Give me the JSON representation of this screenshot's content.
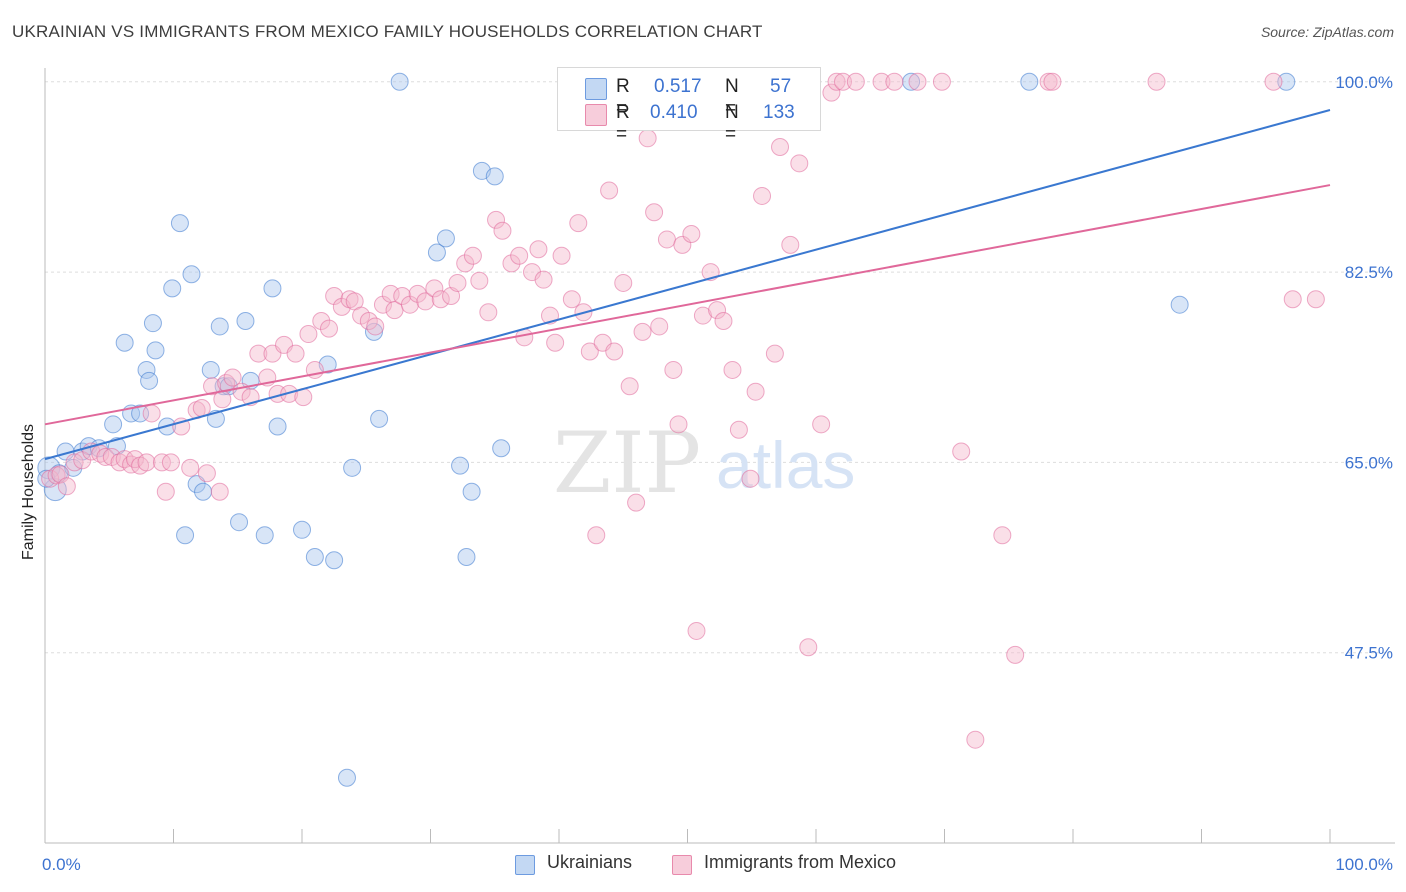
{
  "title": "UKRAINIAN VS IMMIGRANTS FROM MEXICO FAMILY HOUSEHOLDS CORRELATION CHART",
  "source": "Source: ZipAtlas.com",
  "watermark": {
    "zip": "ZIP",
    "atlas": "atlas"
  },
  "legend": {
    "r_label": "R =",
    "n_label": "N =",
    "rows": [
      {
        "r": "0.517",
        "n": "57"
      },
      {
        "r": "0.410",
        "n": "133"
      }
    ]
  },
  "colors": {
    "blue": "#3a78d0",
    "blue_fill": "#a8c6ee",
    "pink": "#e0689a",
    "pink_fill": "#f4b8cc",
    "axis_text": "#3d73d0",
    "grid": "#dddddd"
  },
  "chart_data": {
    "type": "scatter",
    "xlabel": "",
    "ylabel": "Family Households",
    "xlim": [
      0,
      100
    ],
    "ylim": [
      30,
      102
    ],
    "x_tick_labels": [
      "0.0%",
      "100.0%"
    ],
    "y_ticks": [
      47.5,
      65.0,
      82.5,
      100.0
    ],
    "y_tick_labels": [
      "47.5%",
      "65.0%",
      "82.5%",
      "100.0%"
    ],
    "series": [
      {
        "name": "Ukrainians",
        "color": "#3a78d0",
        "fill": "#a8c6ee",
        "r": 0.517,
        "n": 57,
        "trend": {
          "x0": 0,
          "y0": 65.3,
          "x1": 100,
          "y1": 97.4
        },
        "points": [
          [
            0.3,
            64.5
          ],
          [
            0.8,
            62.5
          ],
          [
            1.1,
            64.0
          ],
          [
            1.6,
            66.0
          ],
          [
            2.2,
            64.5
          ],
          [
            2.9,
            66.0
          ],
          [
            3.4,
            66.5
          ],
          [
            4.2,
            66.3
          ],
          [
            5.3,
            68.5
          ],
          [
            5.6,
            66.5
          ],
          [
            6.2,
            76.0
          ],
          [
            6.7,
            69.5
          ],
          [
            7.4,
            69.5
          ],
          [
            7.9,
            73.5
          ],
          [
            8.1,
            72.5
          ],
          [
            8.4,
            77.8
          ],
          [
            8.6,
            75.3
          ],
          [
            9.5,
            68.3
          ],
          [
            9.9,
            81.0
          ],
          [
            10.5,
            87.0
          ],
          [
            10.9,
            58.3
          ],
          [
            11.4,
            82.3
          ],
          [
            11.8,
            63.0
          ],
          [
            12.3,
            62.3
          ],
          [
            12.9,
            73.5
          ],
          [
            13.3,
            69.0
          ],
          [
            13.6,
            77.5
          ],
          [
            13.9,
            72.0
          ],
          [
            14.3,
            72.0
          ],
          [
            15.1,
            59.5
          ],
          [
            15.6,
            78.0
          ],
          [
            16.0,
            72.5
          ],
          [
            17.1,
            58.3
          ],
          [
            17.7,
            81.0
          ],
          [
            18.1,
            68.3
          ],
          [
            20.0,
            58.8
          ],
          [
            21.0,
            56.3
          ],
          [
            22.0,
            74.0
          ],
          [
            22.5,
            56.0
          ],
          [
            23.5,
            36.0
          ],
          [
            23.9,
            64.5
          ],
          [
            25.6,
            77.0
          ],
          [
            26.0,
            69.0
          ],
          [
            27.6,
            100.0
          ],
          [
            30.5,
            84.3
          ],
          [
            31.2,
            85.6
          ],
          [
            32.3,
            64.7
          ],
          [
            32.8,
            56.3
          ],
          [
            33.2,
            62.3
          ],
          [
            34.0,
            91.8
          ],
          [
            35.0,
            91.3
          ],
          [
            35.5,
            66.3
          ],
          [
            67.4,
            100.0
          ],
          [
            76.6,
            100.0
          ],
          [
            88.3,
            79.5
          ],
          [
            96.6,
            100.0
          ],
          [
            0.1,
            63.5
          ]
        ]
      },
      {
        "name": "Immigrants from Mexico",
        "color": "#e0689a",
        "fill": "#f4b8cc",
        "r": 0.41,
        "n": 133,
        "trend": {
          "x0": 0,
          "y0": 68.5,
          "x1": 100,
          "y1": 90.5
        },
        "points": [
          [
            0.4,
            63.5
          ],
          [
            0.9,
            63.8
          ],
          [
            1.2,
            63.9
          ],
          [
            1.7,
            62.8
          ],
          [
            2.3,
            65.0
          ],
          [
            2.9,
            65.2
          ],
          [
            3.6,
            66.0
          ],
          [
            4.3,
            65.8
          ],
          [
            4.7,
            65.5
          ],
          [
            5.2,
            65.5
          ],
          [
            5.8,
            65.0
          ],
          [
            6.2,
            65.3
          ],
          [
            6.7,
            64.8
          ],
          [
            7.0,
            65.3
          ],
          [
            7.4,
            64.7
          ],
          [
            7.9,
            65.0
          ],
          [
            8.3,
            69.5
          ],
          [
            9.1,
            65.0
          ],
          [
            9.4,
            62.3
          ],
          [
            9.8,
            65.0
          ],
          [
            10.6,
            68.3
          ],
          [
            11.3,
            64.5
          ],
          [
            11.8,
            69.8
          ],
          [
            12.2,
            70.0
          ],
          [
            12.6,
            64.0
          ],
          [
            13.0,
            72.0
          ],
          [
            13.6,
            62.3
          ],
          [
            13.8,
            70.8
          ],
          [
            14.1,
            72.3
          ],
          [
            14.6,
            72.8
          ],
          [
            15.3,
            71.5
          ],
          [
            16.0,
            71.0
          ],
          [
            16.6,
            75.0
          ],
          [
            17.3,
            72.8
          ],
          [
            17.7,
            75.0
          ],
          [
            18.1,
            71.3
          ],
          [
            18.6,
            75.8
          ],
          [
            19.0,
            71.3
          ],
          [
            19.5,
            75.0
          ],
          [
            20.1,
            71.0
          ],
          [
            20.5,
            76.8
          ],
          [
            21.0,
            73.5
          ],
          [
            21.5,
            78.0
          ],
          [
            22.1,
            77.3
          ],
          [
            22.5,
            80.3
          ],
          [
            23.1,
            79.3
          ],
          [
            23.7,
            80.0
          ],
          [
            24.1,
            79.8
          ],
          [
            24.6,
            78.5
          ],
          [
            25.2,
            78.0
          ],
          [
            25.7,
            77.5
          ],
          [
            26.3,
            79.5
          ],
          [
            26.9,
            80.5
          ],
          [
            27.2,
            79.0
          ],
          [
            27.8,
            80.3
          ],
          [
            28.4,
            79.5
          ],
          [
            29.0,
            80.5
          ],
          [
            29.6,
            79.8
          ],
          [
            30.3,
            81.0
          ],
          [
            30.8,
            80.0
          ],
          [
            31.6,
            80.3
          ],
          [
            32.1,
            81.5
          ],
          [
            32.7,
            83.3
          ],
          [
            33.3,
            84.0
          ],
          [
            33.8,
            81.7
          ],
          [
            34.5,
            78.8
          ],
          [
            35.1,
            87.3
          ],
          [
            35.6,
            86.3
          ],
          [
            36.3,
            83.3
          ],
          [
            36.9,
            84.0
          ],
          [
            37.3,
            76.5
          ],
          [
            37.9,
            82.5
          ],
          [
            38.4,
            84.6
          ],
          [
            38.8,
            81.8
          ],
          [
            39.3,
            78.5
          ],
          [
            39.7,
            76.0
          ],
          [
            40.2,
            84.0
          ],
          [
            41.0,
            80.0
          ],
          [
            41.5,
            87.0
          ],
          [
            41.9,
            78.8
          ],
          [
            42.4,
            75.2
          ],
          [
            42.9,
            58.3
          ],
          [
            43.4,
            76.0
          ],
          [
            43.9,
            90.0
          ],
          [
            44.3,
            75.2
          ],
          [
            45.0,
            81.5
          ],
          [
            45.5,
            72.0
          ],
          [
            46.0,
            61.3
          ],
          [
            46.5,
            77.0
          ],
          [
            46.9,
            94.8
          ],
          [
            47.4,
            88.0
          ],
          [
            47.8,
            77.5
          ],
          [
            48.4,
            85.5
          ],
          [
            48.9,
            73.5
          ],
          [
            49.3,
            68.5
          ],
          [
            49.6,
            85.0
          ],
          [
            50.3,
            86.0
          ],
          [
            50.7,
            49.5
          ],
          [
            51.2,
            78.5
          ],
          [
            51.8,
            82.5
          ],
          [
            52.3,
            79.0
          ],
          [
            52.8,
            78.0
          ],
          [
            53.5,
            73.5
          ],
          [
            54.0,
            68.0
          ],
          [
            54.6,
            100.0
          ],
          [
            54.9,
            63.5
          ],
          [
            55.3,
            71.5
          ],
          [
            55.8,
            89.5
          ],
          [
            56.3,
            100.0
          ],
          [
            56.8,
            75.0
          ],
          [
            57.2,
            94.0
          ],
          [
            58.0,
            85.0
          ],
          [
            58.7,
            92.5
          ],
          [
            59.4,
            48.0
          ],
          [
            60.4,
            68.5
          ],
          [
            61.2,
            99.0
          ],
          [
            61.6,
            100.0
          ],
          [
            62.1,
            100.0
          ],
          [
            63.1,
            100.0
          ],
          [
            65.1,
            100.0
          ],
          [
            66.1,
            100.0
          ],
          [
            67.9,
            100.0
          ],
          [
            69.8,
            100.0
          ],
          [
            71.3,
            66.0
          ],
          [
            72.4,
            39.5
          ],
          [
            74.5,
            58.3
          ],
          [
            75.5,
            47.3
          ],
          [
            78.1,
            100.0
          ],
          [
            78.4,
            100.0
          ],
          [
            86.5,
            100.0
          ],
          [
            95.6,
            100.0
          ],
          [
            97.1,
            80.0
          ],
          [
            98.9,
            80.0
          ]
        ]
      }
    ]
  }
}
